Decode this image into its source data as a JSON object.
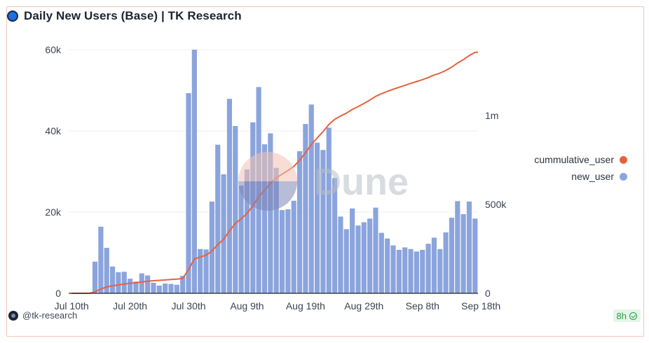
{
  "header": {
    "title": "Daily New Users (Base) | TK Research"
  },
  "footer": {
    "handle": "@tk-research",
    "age": "8h"
  },
  "watermark": {
    "text": "Dune"
  },
  "colors": {
    "bar": "#8ba4dd",
    "line": "#e8613f",
    "grid": "#efefef",
    "axis_text": "#3a4350"
  },
  "chart_data": {
    "type": "bar",
    "title": "Daily New Users (Base) | TK Research",
    "xlabel": "",
    "ylabel": "",
    "x_tick_labels": [
      "Jul 10th",
      "Jul 20th",
      "Jul 30th",
      "Aug 9th",
      "Aug 19th",
      "Aug 29th",
      "Sep 8th",
      "Sep 18th"
    ],
    "x_tick_index": [
      0,
      10,
      20,
      30,
      40,
      50,
      60,
      70
    ],
    "y_left": {
      "ticks": [
        "0",
        "20k",
        "40k",
        "60k"
      ],
      "tick_values": [
        0,
        20000,
        40000,
        60000
      ],
      "ylim": [
        0,
        60000
      ]
    },
    "y_right": {
      "ticks": [
        "0",
        "500k",
        "1m"
      ],
      "tick_values": [
        0,
        500000,
        1000000
      ],
      "ylim": [
        0,
        1370000
      ]
    },
    "legend_position": "right",
    "grid": true,
    "series": [
      {
        "name": "new_user",
        "type": "bar",
        "axis": "left",
        "color": "#8ba4dd",
        "values": [
          0,
          0,
          0,
          0,
          7800,
          16400,
          11200,
          6600,
          5200,
          5300,
          3600,
          2900,
          4900,
          4400,
          2600,
          1900,
          2400,
          2300,
          2100,
          4300,
          49300,
          60000,
          10900,
          10800,
          22600,
          36600,
          29300,
          47900,
          41200,
          26500,
          30500,
          42100,
          50800,
          36700,
          39400,
          30900,
          20500,
          20700,
          22800,
          35000,
          41700,
          46500,
          37100,
          35300,
          40800,
          28400,
          18900,
          15800,
          20900,
          16700,
          17500,
          18400,
          21100,
          14900,
          13500,
          11800,
          10700,
          11300,
          10900,
          10300,
          10700,
          12200,
          13700,
          10900,
          15000,
          18600,
          22700,
          19500,
          22600,
          18400
        ]
      },
      {
        "name": "cummulative_user",
        "type": "line",
        "axis": "right",
        "color": "#e8613f",
        "values": [
          0,
          0,
          0,
          0,
          7800,
          24200,
          35400,
          42000,
          47200,
          52500,
          56100,
          59000,
          63900,
          68300,
          70900,
          72800,
          75200,
          77500,
          79600,
          83900,
          133200,
          193200,
          204100,
          214900,
          237500,
          274100,
          303400,
          351300,
          392500,
          419000,
          449500,
          491600,
          542400,
          579100,
          618500,
          649400,
          669900,
          690600,
          713400,
          748400,
          790100,
          836600,
          873700,
          909000,
          949800,
          978200,
          997100,
          1012900,
          1033800,
          1050500,
          1068000,
          1086400,
          1107500,
          1122400,
          1135900,
          1147700,
          1158400,
          1169700,
          1180600,
          1190900,
          1201600,
          1213800,
          1227500,
          1238400,
          1253400,
          1272000,
          1294700,
          1314200,
          1336800,
          1355200
        ]
      }
    ]
  }
}
